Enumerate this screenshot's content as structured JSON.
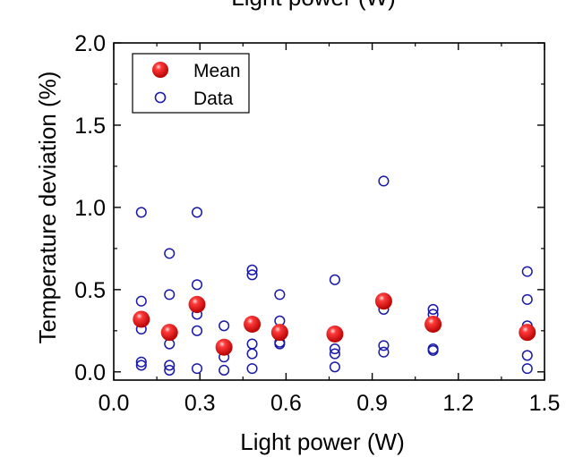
{
  "chart_data": {
    "type": "scatter",
    "title": "Light power (W)",
    "xlabel": "Light power (W)",
    "ylabel": "Temperature deviation (%)",
    "xlim": [
      0.0,
      1.5
    ],
    "ylim": [
      -0.05,
      2.0
    ],
    "xticks": [
      0.0,
      0.3,
      0.6,
      0.9,
      1.2,
      1.5
    ],
    "xtick_labels": [
      "0.0",
      "0.3",
      "0.6",
      "0.9",
      "1.2",
      "1.5"
    ],
    "yticks": [
      0.0,
      0.5,
      1.0,
      1.5,
      2.0
    ],
    "ytick_labels": [
      "0.0",
      "0.5",
      "1.0",
      "1.5",
      "2.0"
    ],
    "grid": false,
    "legend_position": "top-left",
    "series": [
      {
        "name": "Data",
        "marker": "open-circle",
        "color": "#1a1aa8",
        "points": [
          [
            0.096,
            0.97
          ],
          [
            0.096,
            0.43
          ],
          [
            0.096,
            0.26
          ],
          [
            0.096,
            0.06
          ],
          [
            0.096,
            0.04
          ],
          [
            0.194,
            0.72
          ],
          [
            0.194,
            0.47
          ],
          [
            0.194,
            0.17
          ],
          [
            0.194,
            0.04
          ],
          [
            0.194,
            0.01
          ],
          [
            0.29,
            0.97
          ],
          [
            0.29,
            0.53
          ],
          [
            0.29,
            0.39
          ],
          [
            0.29,
            0.35
          ],
          [
            0.29,
            0.25
          ],
          [
            0.29,
            0.02
          ],
          [
            0.384,
            0.28
          ],
          [
            0.384,
            0.14
          ],
          [
            0.384,
            0.09
          ],
          [
            0.384,
            0.01
          ],
          [
            0.482,
            0.62
          ],
          [
            0.482,
            0.59
          ],
          [
            0.482,
            0.17
          ],
          [
            0.482,
            0.11
          ],
          [
            0.482,
            0.02
          ],
          [
            0.578,
            0.47
          ],
          [
            0.578,
            0.31
          ],
          [
            0.578,
            0.18
          ],
          [
            0.578,
            0.17
          ],
          [
            0.77,
            0.56
          ],
          [
            0.77,
            0.14
          ],
          [
            0.77,
            0.11
          ],
          [
            0.77,
            0.03
          ],
          [
            0.94,
            1.16
          ],
          [
            0.94,
            0.38
          ],
          [
            0.94,
            0.16
          ],
          [
            0.94,
            0.12
          ],
          [
            1.112,
            0.38
          ],
          [
            1.112,
            0.35
          ],
          [
            1.112,
            0.14
          ],
          [
            1.112,
            0.13
          ],
          [
            1.44,
            0.61
          ],
          [
            1.44,
            0.44
          ],
          [
            1.44,
            0.28
          ],
          [
            1.44,
            0.1
          ],
          [
            1.44,
            0.02
          ]
        ]
      },
      {
        "name": "Mean",
        "marker": "filled-sphere",
        "color": "#ee1111",
        "points": [
          [
            0.096,
            0.32
          ],
          [
            0.194,
            0.24
          ],
          [
            0.29,
            0.41
          ],
          [
            0.384,
            0.15
          ],
          [
            0.482,
            0.29
          ],
          [
            0.578,
            0.24
          ],
          [
            0.77,
            0.23
          ],
          [
            0.94,
            0.43
          ],
          [
            1.112,
            0.29
          ],
          [
            1.44,
            0.24
          ]
        ]
      }
    ],
    "legend": [
      {
        "label": "Mean",
        "marker": "filled-sphere"
      },
      {
        "label": "Data",
        "marker": "open-circle"
      }
    ]
  }
}
